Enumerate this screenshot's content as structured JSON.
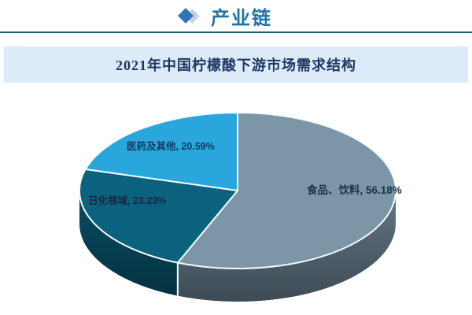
{
  "header": {
    "title": "产业链",
    "title_color": "#2173A6",
    "diamond_color": "#2E74B5",
    "diamond_shadow_color": "#C9CFD4",
    "rule_color": "#1E5A70"
  },
  "chart": {
    "title": "2021年中国柠檬酸下游市场需求结构",
    "title_color": "#1F3864",
    "title_bar_bg": "#DCEBF7"
  },
  "chart_data": {
    "type": "pie",
    "style": "3d",
    "title": "2021年中国柠檬酸下游市场需求结构",
    "unit": "%",
    "start_angle_deg": 0,
    "direction": "clockwise",
    "legend": "none",
    "labels_on_chart": true,
    "slice_border_color": "#F4FAFD",
    "slices": [
      {
        "label": "食品、饮料",
        "value": 56.18,
        "display": "食品、饮料, 56.18%",
        "color": "#7C96A8",
        "label_color": "#1D3447"
      },
      {
        "label": "日化领域",
        "value": 23.23,
        "display": "日化领域, 23.23%",
        "color": "#0A627E",
        "label_color": "#122B3D"
      },
      {
        "label": "医药及其他",
        "value": 20.59,
        "display": "医药及其他, 20.59%",
        "color": "#29A7DC",
        "label_color": "#0D3C63"
      }
    ]
  }
}
